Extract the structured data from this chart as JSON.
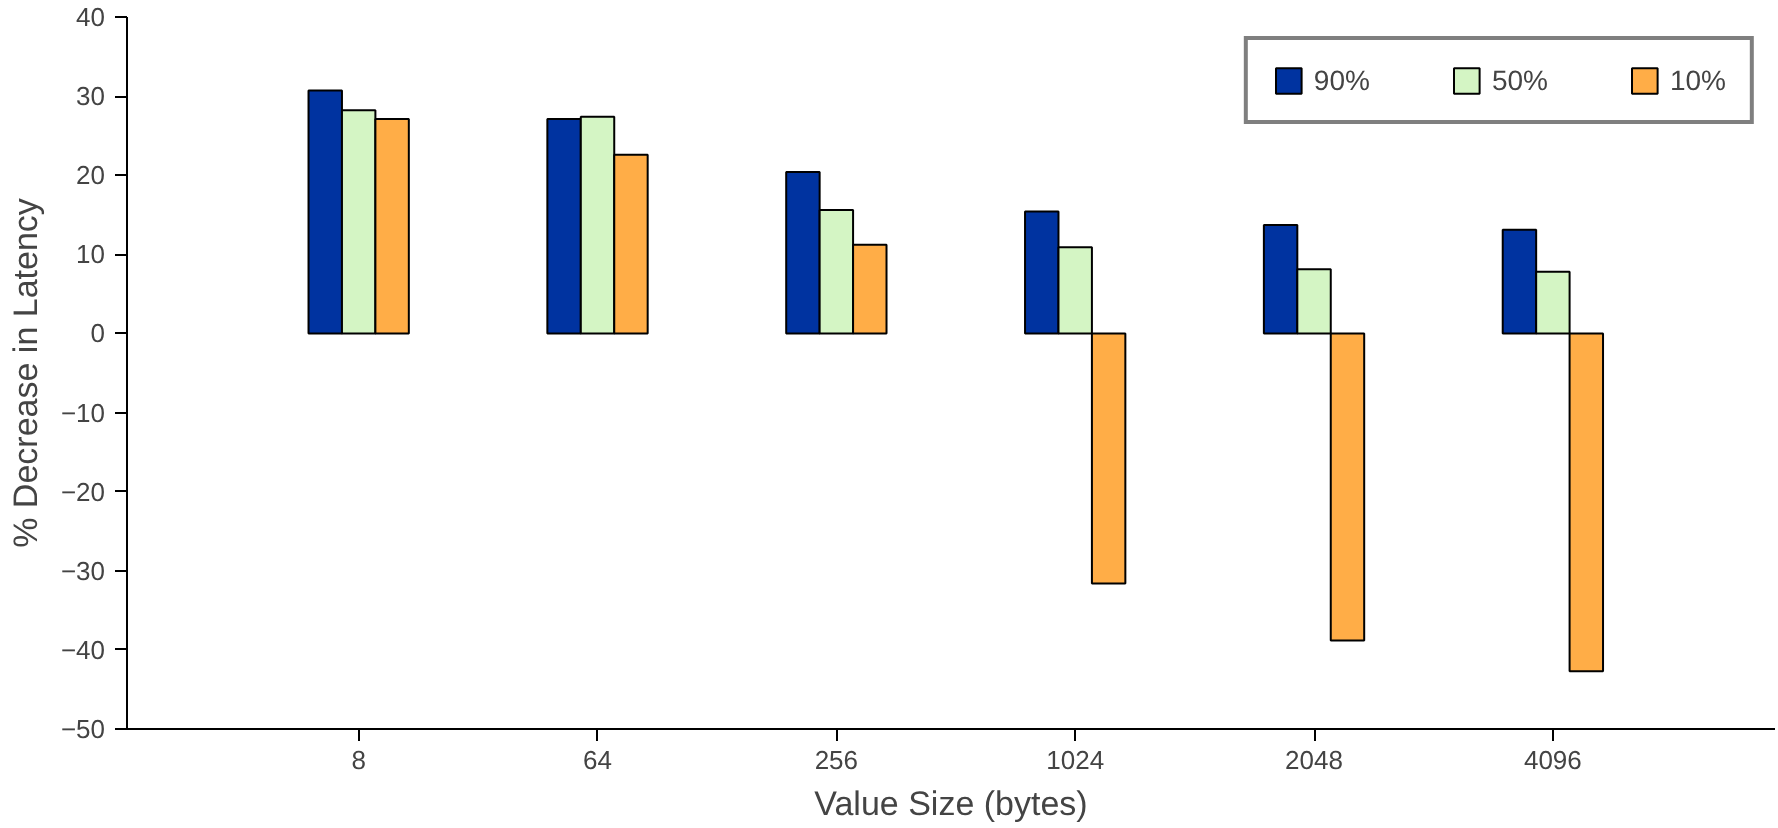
{
  "chart_data": {
    "type": "bar",
    "xlabel": "Value Size (bytes)",
    "ylabel": "% Decrease in Latency",
    "categories": [
      "8",
      "64",
      "256",
      "1024",
      "2048",
      "4096"
    ],
    "series": [
      {
        "name": "90%",
        "color": "#0033a0",
        "values": [
          30.7,
          27.1,
          20.4,
          15.4,
          13.7,
          13.1
        ]
      },
      {
        "name": "50%",
        "color": "#d4f5c4",
        "values": [
          28.2,
          27.4,
          15.6,
          10.9,
          8.1,
          7.8
        ]
      },
      {
        "name": "10%",
        "color": "#ffad47",
        "values": [
          27.1,
          22.6,
          11.2,
          -31.6,
          -38.8,
          -42.7
        ]
      }
    ],
    "ylim": [
      -50,
      40
    ],
    "yticks": [
      -50,
      -40,
      -30,
      -20,
      -10,
      0,
      10,
      20,
      30,
      40
    ],
    "grid": false,
    "legend": "top right"
  }
}
